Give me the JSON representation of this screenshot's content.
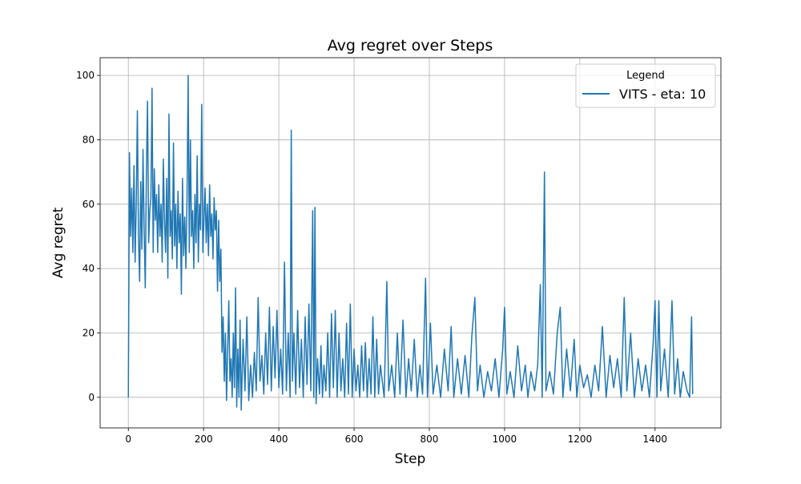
{
  "chart_data": {
    "type": "line",
    "title": "Avg regret over Steps",
    "xlabel": "Step",
    "ylabel": "Avg regret",
    "x": [
      0,
      3,
      6,
      9,
      12,
      15,
      18,
      21,
      24,
      27,
      30,
      33,
      36,
      39,
      42,
      45,
      48,
      51,
      54,
      57,
      60,
      63,
      66,
      69,
      72,
      75,
      78,
      81,
      84,
      87,
      90,
      93,
      96,
      99,
      102,
      105,
      108,
      111,
      114,
      117,
      120,
      123,
      126,
      129,
      132,
      135,
      138,
      141,
      144,
      147,
      150,
      153,
      156,
      159,
      162,
      165,
      168,
      171,
      174,
      177,
      180,
      183,
      186,
      189,
      192,
      195,
      198,
      201,
      204,
      207,
      210,
      213,
      216,
      219,
      222,
      225,
      228,
      231,
      234,
      237,
      240,
      243,
      246,
      249,
      252,
      255,
      258,
      261,
      264,
      267,
      270,
      273,
      276,
      279,
      282,
      285,
      288,
      291,
      294,
      297,
      300,
      305,
      310,
      315,
      320,
      325,
      330,
      335,
      340,
      345,
      350,
      355,
      360,
      365,
      370,
      375,
      380,
      385,
      390,
      395,
      400,
      405,
      410,
      415,
      420,
      425,
      430,
      433,
      436,
      440,
      445,
      450,
      455,
      460,
      465,
      470,
      475,
      480,
      485,
      490,
      493,
      496,
      499,
      503,
      508,
      512,
      516,
      520,
      525,
      530,
      535,
      540,
      545,
      550,
      555,
      560,
      565,
      570,
      575,
      580,
      585,
      590,
      595,
      600,
      605,
      610,
      615,
      620,
      625,
      630,
      635,
      640,
      645,
      650,
      655,
      660,
      665,
      670,
      680,
      687,
      692,
      700,
      708,
      715,
      722,
      730,
      738,
      745,
      752,
      760,
      768,
      775,
      782,
      790,
      795,
      803,
      810,
      820,
      830,
      840,
      850,
      858,
      865,
      875,
      885,
      895,
      905,
      913,
      921,
      928,
      935,
      945,
      955,
      965,
      975,
      985,
      995,
      1000,
      1006,
      1015,
      1025,
      1035,
      1045,
      1055,
      1062,
      1070,
      1080,
      1088,
      1095,
      1100,
      1106,
      1110,
      1120,
      1130,
      1140,
      1148,
      1155,
      1165,
      1175,
      1185,
      1192,
      1200,
      1210,
      1220,
      1230,
      1240,
      1250,
      1260,
      1270,
      1280,
      1290,
      1300,
      1310,
      1318,
      1325,
      1335,
      1345,
      1355,
      1365,
      1375,
      1385,
      1395,
      1400,
      1405,
      1410,
      1415,
      1425,
      1435,
      1445,
      1452,
      1460,
      1467,
      1475,
      1485,
      1492,
      1497,
      1500
    ],
    "series": [
      {
        "name": "VITS - eta: 10",
        "color": "#1f77b4",
        "values": [
          0,
          76,
          50,
          65,
          45,
          72,
          42,
          60,
          89,
          50,
          36,
          67,
          46,
          77,
          52,
          34,
          70,
          92,
          48,
          58,
          62,
          96,
          45,
          71,
          55,
          63,
          45,
          66,
          50,
          60,
          42,
          74,
          55,
          45,
          68,
          37,
          88,
          50,
          58,
          43,
          79,
          47,
          60,
          40,
          64,
          48,
          57,
          32,
          68,
          44,
          56,
          40,
          62,
          100,
          45,
          80,
          50,
          58,
          40,
          63,
          48,
          75,
          42,
          60,
          52,
          91,
          45,
          55,
          65,
          48,
          60,
          44,
          66,
          50,
          57,
          43,
          62,
          52,
          58,
          33,
          55,
          36,
          46,
          14,
          25,
          5,
          20,
          -1,
          15,
          30,
          5,
          12,
          0,
          20,
          3,
          34,
          -3,
          15,
          0,
          24,
          -4,
          18,
          2,
          25,
          -1,
          10,
          0,
          14,
          2,
          31,
          5,
          13,
          1,
          20,
          4,
          28,
          2,
          22,
          6,
          27,
          3,
          15,
          1,
          42,
          2,
          20,
          0,
          83,
          5,
          20,
          1,
          27,
          3,
          18,
          0,
          25,
          4,
          29,
          2,
          58,
          0,
          59,
          -2,
          12,
          1,
          16,
          0,
          10,
          2,
          20,
          0,
          26,
          3,
          27,
          0,
          20,
          2,
          12,
          0,
          23,
          1,
          29,
          0,
          15,
          2,
          10,
          0,
          16,
          2,
          17,
          0,
          12,
          1,
          25,
          0,
          18,
          1,
          10,
          0,
          36,
          2,
          10,
          0,
          20,
          1,
          24,
          0,
          12,
          2,
          18,
          0,
          10,
          1,
          37,
          0,
          23,
          1,
          10,
          0,
          15,
          2,
          22,
          0,
          12,
          1,
          13,
          0,
          19,
          31,
          2,
          10,
          0,
          8,
          2,
          12,
          0,
          15,
          28,
          1,
          8,
          0,
          16,
          2,
          10,
          0,
          8,
          2,
          10,
          35,
          0,
          70,
          2,
          8,
          1,
          20,
          28,
          0,
          15,
          2,
          18,
          0,
          10,
          3,
          7,
          0,
          10,
          2,
          22,
          0,
          13,
          3,
          12,
          0,
          31,
          2,
          20,
          0,
          12,
          2,
          10,
          0,
          17,
          30,
          0,
          30,
          2,
          15,
          0,
          30,
          1,
          12,
          0,
          8,
          2,
          0,
          25,
          1
        ]
      }
    ],
    "xlim": [
      -75,
      1575
    ],
    "ylim": [
      -9.5,
      105.5
    ],
    "xticks": [
      0,
      200,
      400,
      600,
      800,
      1000,
      1200,
      1400
    ],
    "yticks": [
      0,
      20,
      40,
      60,
      80,
      100
    ],
    "grid": true,
    "legend_title": "Legend",
    "legend_loc": "upper right"
  }
}
